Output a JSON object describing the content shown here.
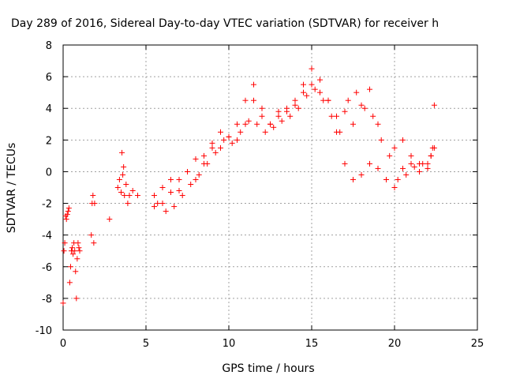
{
  "chart_data": {
    "type": "scatter",
    "title": "Day 289 of 2016, Sidereal Day-to-day VTEC variation (SDTVAR) for receiver h",
    "xlabel": "GPS time / hours",
    "ylabel": "SDTVAR / TECUs",
    "xlim": [
      0,
      25
    ],
    "ylim": [
      -10,
      8
    ],
    "x_ticks": [
      0,
      5,
      10,
      15,
      20,
      25
    ],
    "y_ticks": [
      -10,
      -8,
      -6,
      -4,
      -2,
      0,
      2,
      4,
      6,
      8
    ],
    "x_tick_labels": [
      "0",
      "5",
      "10",
      "15",
      "20",
      "25"
    ],
    "y_tick_labels": [
      "-10",
      "-8",
      "-6",
      "-4",
      "-2",
      "0",
      "2",
      "4",
      "6",
      "8"
    ],
    "grid": true,
    "marker": "+",
    "series_color": "#ff0000",
    "series": [
      {
        "x": [
          0.0,
          0.05,
          0.1,
          0.15,
          0.2,
          0.25,
          0.3,
          0.35,
          0.4,
          0.45,
          0.5,
          0.55,
          0.6,
          0.65,
          0.7,
          0.75,
          0.8,
          0.85,
          0.9,
          0.95,
          1.0,
          1.7,
          1.75,
          1.8,
          1.85,
          1.9,
          2.8,
          3.3,
          3.4,
          3.5,
          3.55,
          3.6,
          3.65,
          3.7,
          3.8,
          3.9,
          4.0,
          4.2,
          4.5,
          5.5,
          6.0,
          6.5,
          7.0,
          7.5,
          8.0,
          8.5,
          9.0,
          9.5,
          10.0,
          10.5,
          11.0,
          11.5,
          12.0,
          12.5,
          13.0,
          13.5,
          14.0,
          14.5,
          15.0,
          15.5,
          16.0,
          16.5,
          17.0,
          17.5,
          18.0,
          18.5,
          19.0,
          19.5,
          20.0,
          20.5,
          21.0,
          21.5,
          22.0,
          22.3
        ],
        "y": [
          -8.3,
          -5.0,
          -4.5,
          -2.8,
          -3.0,
          -2.7,
          -2.5,
          -2.3,
          -7.0,
          -6.0,
          -5.0,
          -4.8,
          -5.2,
          -4.5,
          -5.0,
          -6.3,
          -8.0,
          -5.5,
          -4.5,
          -4.8,
          -5.0,
          -4.0,
          -2.0,
          -1.5,
          -4.5,
          -2.0,
          -3.0,
          -1.0,
          -0.5,
          -1.3,
          1.2,
          -0.2,
          0.3,
          -1.5,
          -0.8,
          -2.0,
          -1.5,
          -1.2,
          -1.5,
          -2.2,
          -2.0,
          -1.3,
          -0.5,
          0.0,
          -0.5,
          0.5,
          1.5,
          2.5,
          2.2,
          2.0,
          3.0,
          4.5,
          3.5,
          3.0,
          3.8,
          4.0,
          4.5,
          5.0,
          5.5,
          5.0,
          4.5,
          3.5,
          3.8,
          3.0,
          4.2,
          5.2,
          3.0,
          -0.5,
          -1.0,
          0.2,
          0.5,
          0.0,
          0.5,
          1.5
        ]
      },
      {
        "x": [
          5.5,
          6.0,
          6.5,
          7.0,
          7.5,
          8.0,
          8.5,
          9.0,
          9.5,
          10.0,
          10.5,
          11.0,
          11.5,
          12.0,
          12.5,
          13.0,
          13.5,
          14.0,
          14.5,
          15.0,
          15.5,
          16.0,
          16.5,
          17.0,
          17.5,
          18.0,
          18.5,
          19.0,
          19.5,
          20.0,
          20.5,
          21.0,
          21.5,
          22.0,
          22.2,
          22.4
        ],
        "y": [
          -1.5,
          -1.0,
          -0.5,
          -1.2,
          0.0,
          0.8,
          1.0,
          1.8,
          1.5,
          2.2,
          3.0,
          4.5,
          5.5,
          4.0,
          3.0,
          3.5,
          3.8,
          4.2,
          5.5,
          6.5,
          5.8,
          4.5,
          2.5,
          0.5,
          -0.5,
          -0.2,
          0.5,
          0.2,
          -0.5,
          1.5,
          2.0,
          1.0,
          0.5,
          0.2,
          1.0,
          1.5
        ]
      },
      {
        "x": [
          5.7,
          6.2,
          6.7,
          7.2,
          7.7,
          8.2,
          8.7,
          9.2,
          9.7,
          10.2,
          10.7,
          11.2,
          11.7,
          12.2,
          12.7,
          13.2,
          13.7,
          14.2,
          14.7,
          15.2,
          15.7,
          16.2,
          16.7,
          17.2,
          17.7,
          18.2,
          18.7,
          19.2,
          19.7,
          20.2,
          20.7,
          21.2,
          21.7,
          22.2,
          22.4
        ],
        "y": [
          -2.0,
          -2.5,
          -2.2,
          -1.5,
          -0.8,
          -0.2,
          0.5,
          1.2,
          2.0,
          1.8,
          2.5,
          3.2,
          3.0,
          2.5,
          2.8,
          3.2,
          3.5,
          4.0,
          4.8,
          5.2,
          4.5,
          3.5,
          2.5,
          4.5,
          5.0,
          4.0,
          3.5,
          2.0,
          1.0,
          -0.5,
          -0.2,
          0.3,
          0.5,
          1.0,
          4.2
        ]
      }
    ]
  }
}
